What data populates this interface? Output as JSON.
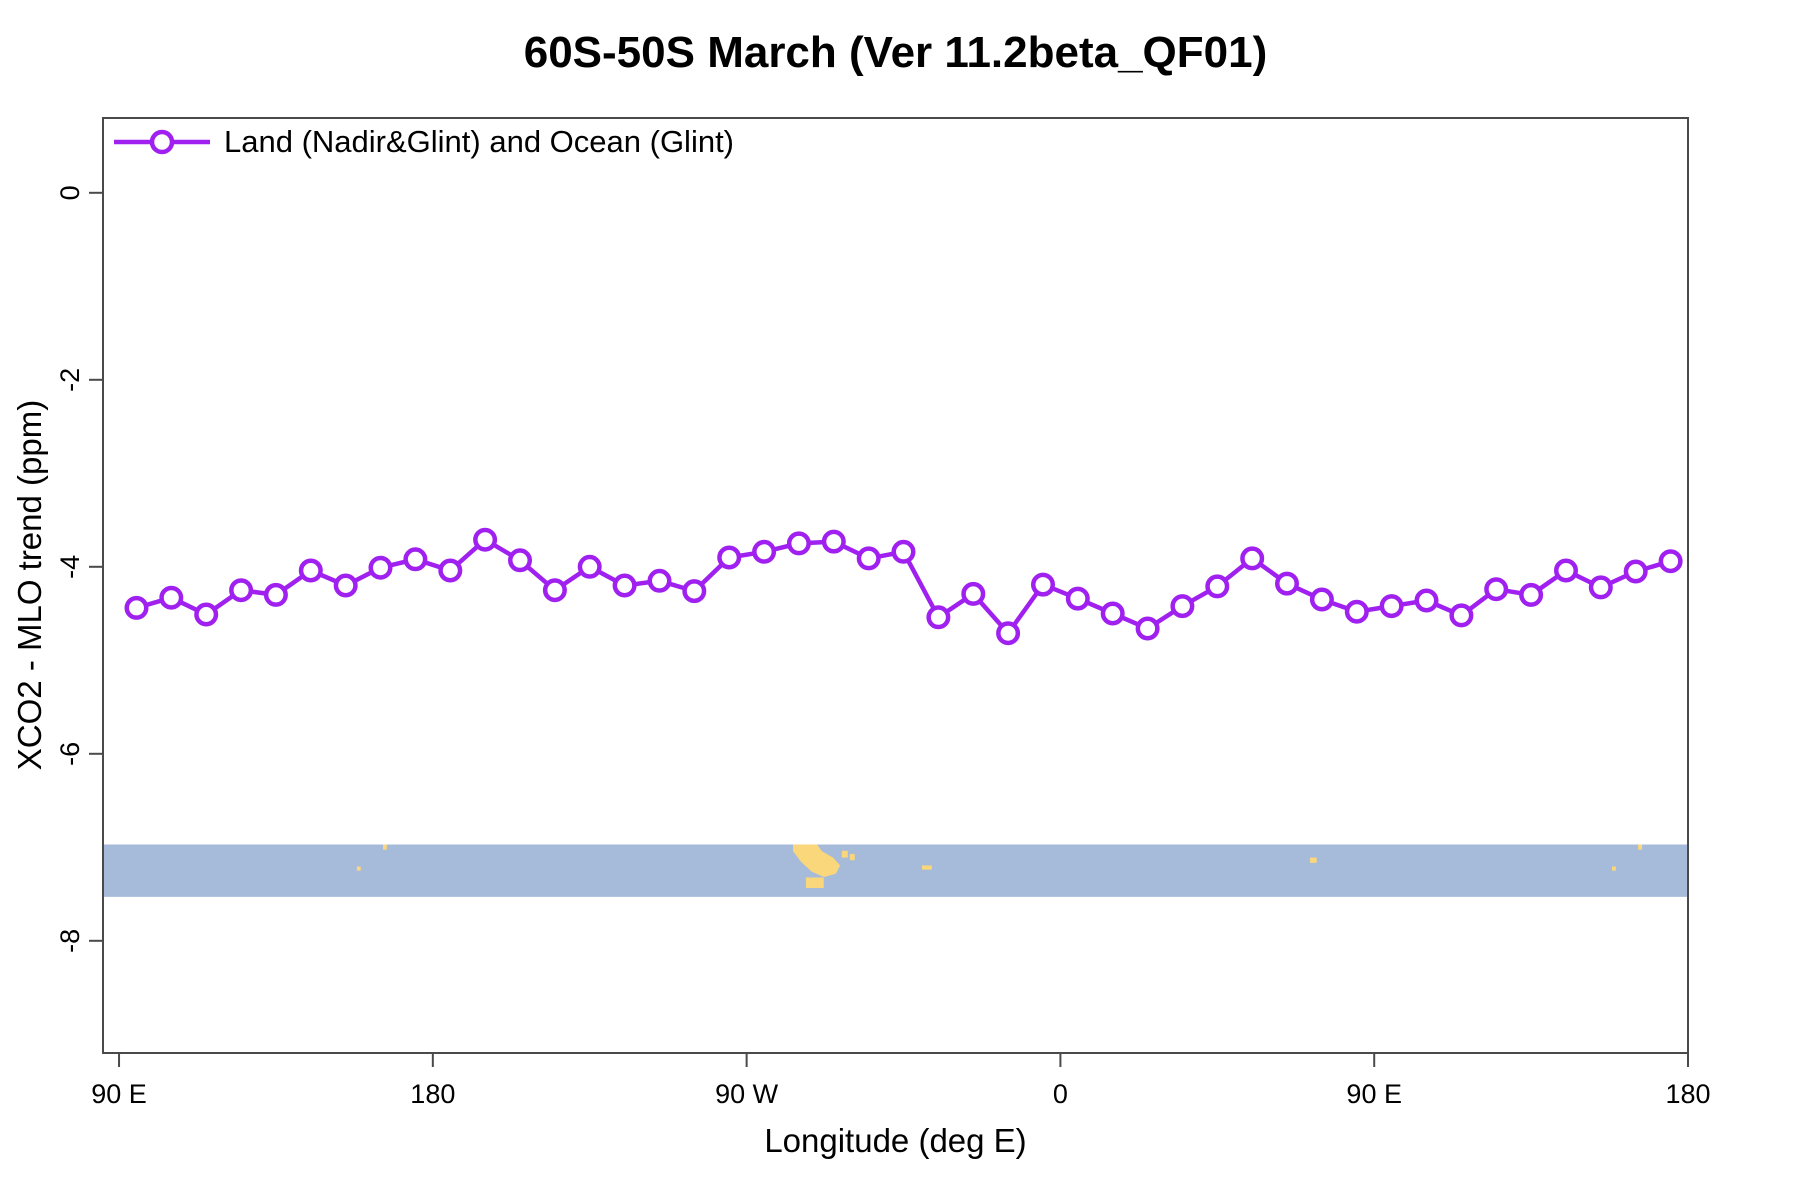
{
  "title": "60S-50S March (Ver 11.2beta_QF01)",
  "legend": {
    "label": "Land (Nadir&Glint) and Ocean (Glint)"
  },
  "colors": {
    "series": "#A020F0",
    "marker_fill": "#FFFFFF",
    "ocean": "#A6BADA",
    "land": "#FBD77B",
    "axis": "#4A4A4A",
    "text": "#000000"
  },
  "chart_data": {
    "type": "line",
    "title": "60S-50S March (Ver 11.2beta_QF01)",
    "xlabel": "Longitude (deg E)",
    "ylabel": "XCO2 - MLO trend (ppm)",
    "xlim": [
      85.4,
      540
    ],
    "ylim": [
      -9.2,
      0.8
    ],
    "grid": false,
    "legend_position": "top-left-inside",
    "x_note": "longitude in degrees east; values above 360 are the wrap-around repeat of 0-180E",
    "x_ticks": [
      {
        "value": 90,
        "label": "90 E"
      },
      {
        "value": 180,
        "label": "180"
      },
      {
        "value": 270,
        "label": "90 W"
      },
      {
        "value": 360,
        "label": "0"
      },
      {
        "value": 450,
        "label": "90 E"
      },
      {
        "value": 540,
        "label": "180"
      }
    ],
    "y_ticks": [
      {
        "value": 0,
        "label": "0"
      },
      {
        "value": -2,
        "label": "-2"
      },
      {
        "value": -4,
        "label": "-4"
      },
      {
        "value": -6,
        "label": "-6"
      },
      {
        "value": -8,
        "label": "-8"
      }
    ],
    "x": [
      95,
      105,
      115,
      125,
      135,
      145,
      155,
      165,
      175,
      185,
      195,
      205,
      215,
      225,
      235,
      245,
      255,
      265,
      275,
      285,
      295,
      305,
      315,
      325,
      335,
      345,
      355,
      365,
      375,
      385,
      395,
      405,
      415,
      425,
      435,
      445,
      455,
      465,
      475,
      485,
      495,
      505,
      515,
      525,
      535
    ],
    "series": [
      {
        "name": "Land (Nadir&Glint) and Ocean (Glint)",
        "color": "#A020F0",
        "marker": "open-circle",
        "values": [
          -4.44,
          -4.33,
          -4.51,
          -4.25,
          -4.3,
          -4.04,
          -4.2,
          -4.01,
          -3.92,
          -4.04,
          -3.71,
          -3.93,
          -4.25,
          -4.0,
          -4.2,
          -4.15,
          -4.26,
          -3.9,
          -3.84,
          -3.75,
          -3.73,
          -3.91,
          -3.84,
          -4.54,
          -4.29,
          -4.71,
          -4.19,
          -4.34,
          -4.5,
          -4.66,
          -4.42,
          -4.21,
          -3.91,
          -4.18,
          -4.35,
          -4.48,
          -4.42,
          -4.36,
          -4.52,
          -4.24,
          -4.3,
          -4.04,
          -4.22,
          -4.05,
          -3.94
        ]
      }
    ],
    "map_band": {
      "description": "world-map strip of the 60S-50S latitude band (ocean blue, land yellow)",
      "y_top_ppm": -6.97,
      "y_bottom_ppm": -7.53,
      "ocean_color": "#A6BADA",
      "land_color": "#FBD77B",
      "land": [
        {
          "name": "patagonia",
          "type": "polygon",
          "points": [
            [
              283.3,
              0
            ],
            [
              290.2,
              0
            ],
            [
              291.6,
              0.13
            ],
            [
              294.8,
              0.25
            ],
            [
              296.8,
              0.4
            ],
            [
              295.6,
              0.56
            ],
            [
              292.2,
              0.62
            ],
            [
              288.7,
              0.52
            ],
            [
              285.6,
              0.33
            ],
            [
              283.3,
              0.13
            ]
          ]
        },
        {
          "name": "tierra-del-fuego",
          "type": "rect",
          "lon": [
            287.0,
            292.1
          ],
          "frac": [
            0.63,
            0.83
          ]
        },
        {
          "name": "falkland-islands-west",
          "type": "rect",
          "lon": [
            297.3,
            299.0
          ],
          "frac": [
            0.12,
            0.25
          ]
        },
        {
          "name": "falkland-islands-east",
          "type": "rect",
          "lon": [
            299.6,
            301.0
          ],
          "frac": [
            0.18,
            0.3
          ]
        },
        {
          "name": "south-georgia",
          "type": "rect",
          "lon": [
            320.3,
            323.1
          ],
          "frac": [
            0.4,
            0.48
          ]
        },
        {
          "name": "macquarie-island",
          "type": "rect",
          "lon": [
            158.2,
            159.3
          ],
          "frac": [
            0.42,
            0.5
          ]
        },
        {
          "name": "auckland-islands",
          "type": "rect",
          "lon": [
            165.7,
            166.8
          ],
          "frac": [
            0.0,
            0.1
          ]
        },
        {
          "name": "kerguelen",
          "type": "rect",
          "lon": [
            431.6,
            433.5
          ],
          "frac": [
            0.25,
            0.35
          ]
        },
        {
          "name": "macquarie-island-wrap",
          "type": "rect",
          "lon": [
            518.2,
            519.3
          ],
          "frac": [
            0.42,
            0.5
          ]
        },
        {
          "name": "auckland-islands-wrap",
          "type": "rect",
          "lon": [
            525.7,
            526.8
          ],
          "frac": [
            0.0,
            0.1
          ]
        }
      ]
    }
  }
}
